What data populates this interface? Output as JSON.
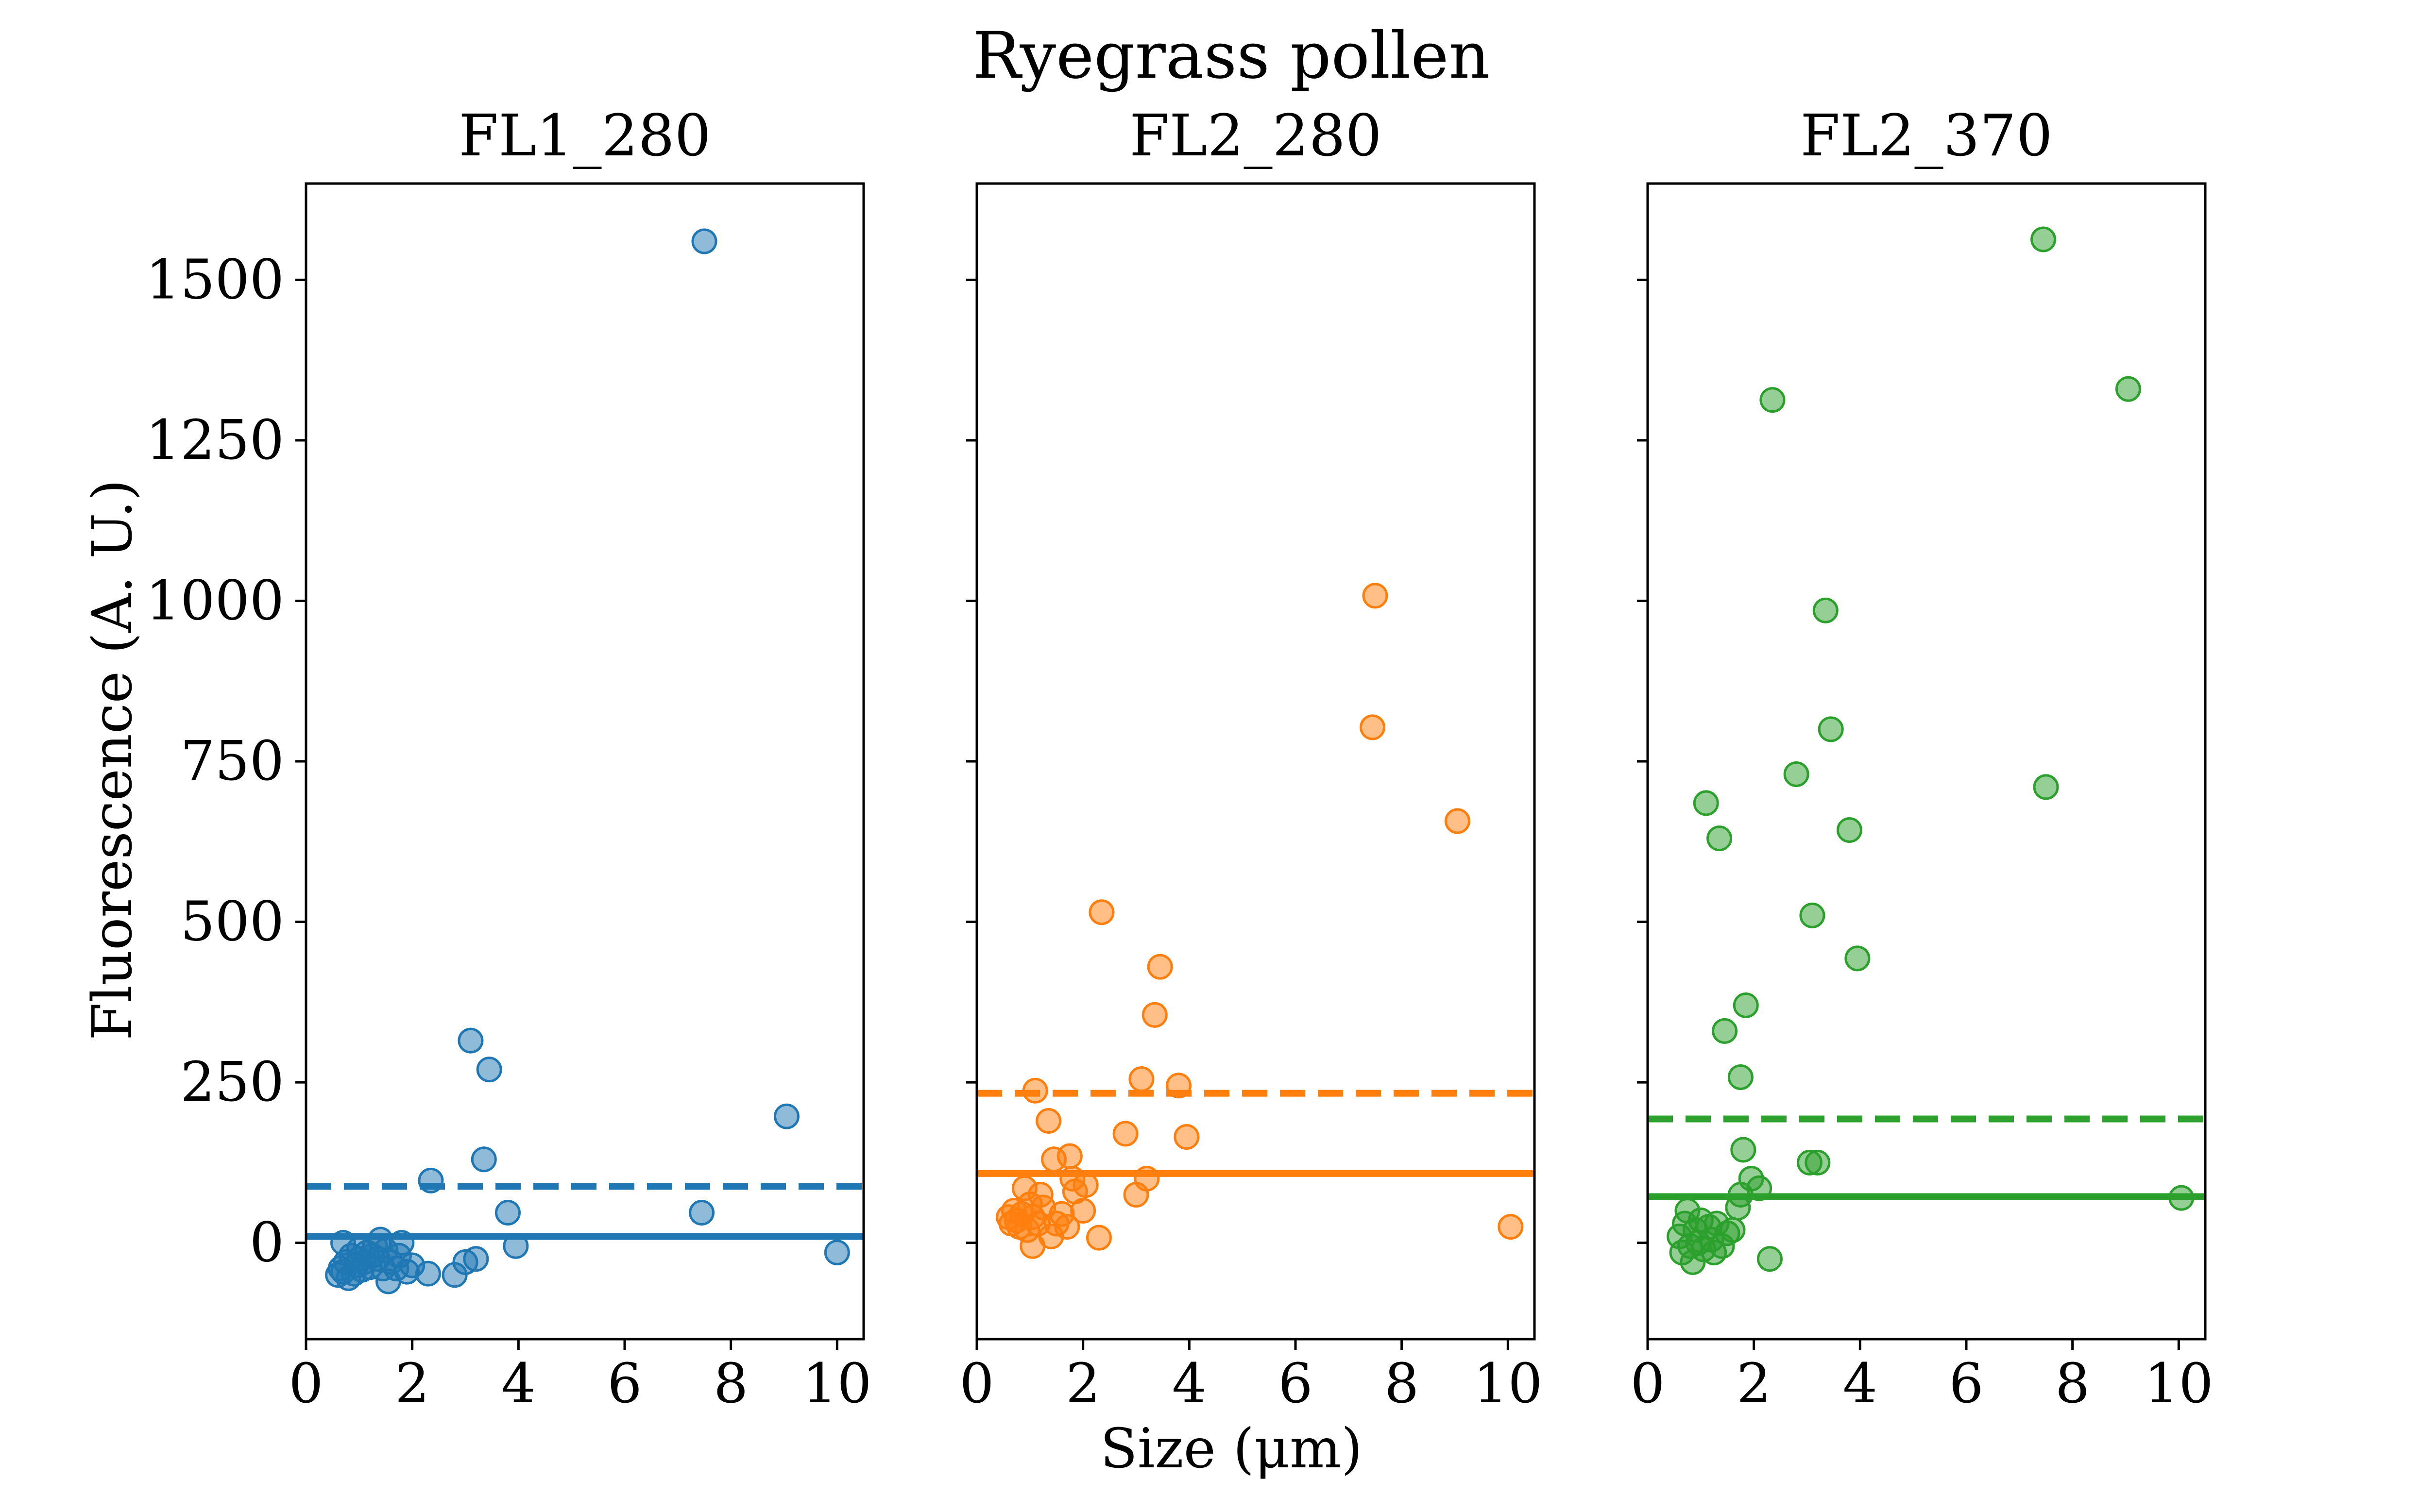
{
  "figure": {
    "title": "Ryegrass pollen",
    "xlabel": "Size (μm)",
    "ylabel": "Fluorescence (A. U.)"
  },
  "chart_data": [
    {
      "type": "scatter",
      "title": "FL1_280",
      "xlim": [
        0,
        10.5
      ],
      "ylim": [
        -150,
        1650
      ],
      "x_ticks": [
        "0",
        "2",
        "4",
        "6",
        "8",
        "10"
      ],
      "y_ticks": [
        "0",
        "250",
        "500",
        "750",
        "1000",
        "1250",
        "1500"
      ],
      "color": "#1f77b4",
      "solid_line": 10,
      "dashed_line": 88,
      "points": [
        [
          0.6,
          -50
        ],
        [
          0.65,
          -40
        ],
        [
          0.7,
          -45
        ],
        [
          0.7,
          0
        ],
        [
          0.75,
          -30
        ],
        [
          0.8,
          -55
        ],
        [
          0.85,
          -20
        ],
        [
          0.9,
          -48
        ],
        [
          0.95,
          -35
        ],
        [
          1.0,
          -25
        ],
        [
          1.0,
          -10
        ],
        [
          1.05,
          -42
        ],
        [
          1.1,
          -30
        ],
        [
          1.15,
          -15
        ],
        [
          1.2,
          -38
        ],
        [
          1.25,
          -20
        ],
        [
          1.3,
          -5
        ],
        [
          1.35,
          -25
        ],
        [
          1.4,
          5
        ],
        [
          1.45,
          -40
        ],
        [
          1.5,
          -12
        ],
        [
          1.55,
          -60
        ],
        [
          1.6,
          -30
        ],
        [
          1.7,
          -40
        ],
        [
          1.75,
          -20
        ],
        [
          1.8,
          0
        ],
        [
          1.9,
          -45
        ],
        [
          2.0,
          -35
        ],
        [
          2.3,
          -48
        ],
        [
          2.35,
          97
        ],
        [
          2.8,
          -50
        ],
        [
          3.0,
          -30
        ],
        [
          3.1,
          315
        ],
        [
          3.2,
          -25
        ],
        [
          3.35,
          130
        ],
        [
          3.45,
          270
        ],
        [
          3.8,
          47
        ],
        [
          3.95,
          -5
        ],
        [
          7.45,
          47
        ],
        [
          7.5,
          1560
        ],
        [
          9.05,
          197
        ],
        [
          10.0,
          -15
        ]
      ]
    },
    {
      "type": "scatter",
      "title": "FL2_280",
      "xlim": [
        0,
        10.5
      ],
      "ylim": [
        -150,
        1650
      ],
      "x_ticks": [
        "0",
        "2",
        "4",
        "6",
        "8",
        "10"
      ],
      "y_ticks": [],
      "color": "#ff7f0e",
      "solid_line": 108,
      "dashed_line": 233,
      "points": [
        [
          0.6,
          40
        ],
        [
          0.65,
          30
        ],
        [
          0.7,
          50
        ],
        [
          0.75,
          35
        ],
        [
          0.8,
          25
        ],
        [
          0.85,
          45
        ],
        [
          0.9,
          85
        ],
        [
          0.95,
          20
        ],
        [
          1.0,
          60
        ],
        [
          1.05,
          40
        ],
        [
          1.05,
          -5
        ],
        [
          1.1,
          237
        ],
        [
          1.15,
          30
        ],
        [
          1.2,
          75
        ],
        [
          1.25,
          55
        ],
        [
          1.35,
          190
        ],
        [
          1.4,
          10
        ],
        [
          1.45,
          130
        ],
        [
          1.5,
          30
        ],
        [
          1.6,
          45
        ],
        [
          1.7,
          25
        ],
        [
          1.75,
          135
        ],
        [
          1.8,
          100
        ],
        [
          1.85,
          80
        ],
        [
          2.0,
          50
        ],
        [
          2.05,
          90
        ],
        [
          2.3,
          8
        ],
        [
          2.35,
          515
        ],
        [
          2.8,
          170
        ],
        [
          3.0,
          75
        ],
        [
          3.1,
          255
        ],
        [
          3.2,
          100
        ],
        [
          3.35,
          355
        ],
        [
          3.45,
          430
        ],
        [
          3.8,
          245
        ],
        [
          3.95,
          165
        ],
        [
          7.45,
          803
        ],
        [
          7.5,
          1008
        ],
        [
          9.05,
          657
        ],
        [
          10.05,
          25
        ]
      ]
    },
    {
      "type": "scatter",
      "title": "FL2_370",
      "xlim": [
        0,
        10.5
      ],
      "ylim": [
        -150,
        1650
      ],
      "x_ticks": [
        "0",
        "2",
        "4",
        "6",
        "8",
        "10"
      ],
      "y_ticks": [],
      "color": "#2ca02c",
      "solid_line": 72,
      "dashed_line": 193,
      "points": [
        [
          0.6,
          10
        ],
        [
          0.65,
          -15
        ],
        [
          0.7,
          30
        ],
        [
          0.75,
          50
        ],
        [
          0.8,
          -5
        ],
        [
          0.85,
          -30
        ],
        [
          0.9,
          20
        ],
        [
          0.95,
          0
        ],
        [
          1.0,
          35
        ],
        [
          1.05,
          -10
        ],
        [
          1.1,
          685
        ],
        [
          1.15,
          25
        ],
        [
          1.2,
          5
        ],
        [
          1.25,
          -15
        ],
        [
          1.3,
          30
        ],
        [
          1.35,
          630
        ],
        [
          1.4,
          -5
        ],
        [
          1.45,
          330
        ],
        [
          1.5,
          15
        ],
        [
          1.6,
          20
        ],
        [
          1.7,
          55
        ],
        [
          1.75,
          75
        ],
        [
          1.75,
          258
        ],
        [
          1.8,
          145
        ],
        [
          1.85,
          370
        ],
        [
          1.95,
          100
        ],
        [
          2.1,
          85
        ],
        [
          2.3,
          -25
        ],
        [
          2.35,
          1313
        ],
        [
          2.8,
          730
        ],
        [
          3.05,
          125
        ],
        [
          3.1,
          510
        ],
        [
          3.2,
          125
        ],
        [
          3.35,
          985
        ],
        [
          3.45,
          800
        ],
        [
          3.8,
          643
        ],
        [
          3.95,
          443
        ],
        [
          7.45,
          1563
        ],
        [
          7.5,
          710
        ],
        [
          9.05,
          1330
        ],
        [
          10.05,
          70
        ]
      ]
    }
  ]
}
